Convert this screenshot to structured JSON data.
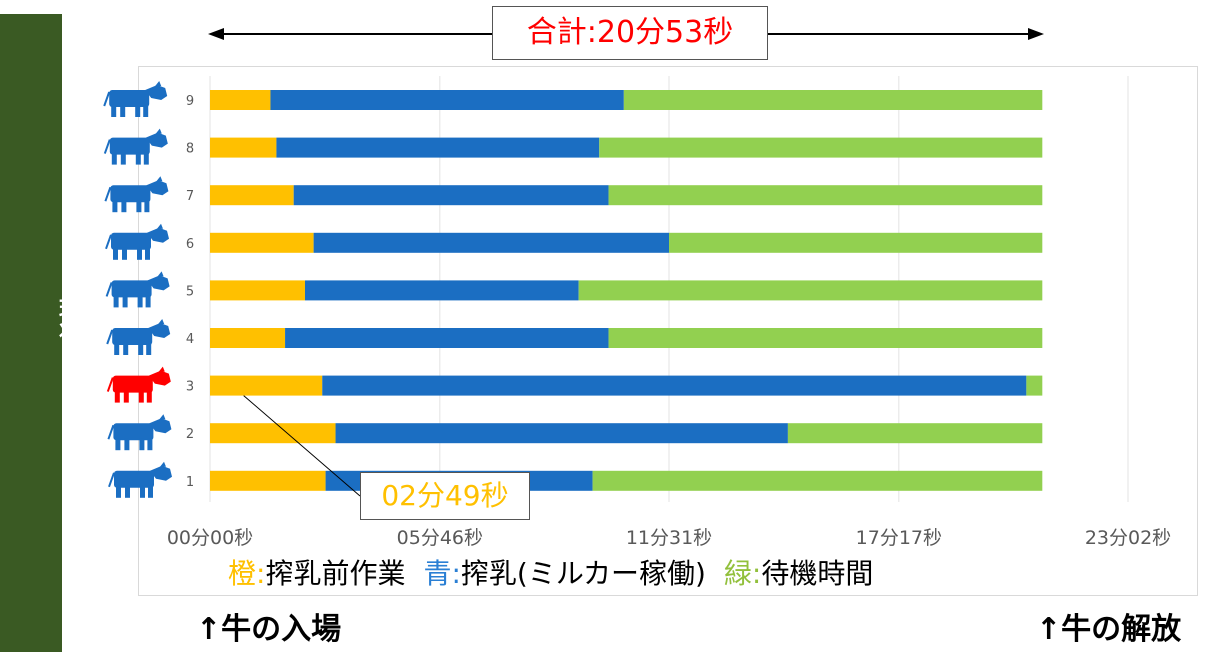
{
  "side_label": "現状",
  "colors": {
    "prep": "#ffc000",
    "milk": "#1b6ec2",
    "wait": "#92d050",
    "cow": "#1b6ec2",
    "cow_highlight": "#ff0000",
    "side_bar": "#3a5a23"
  },
  "total_label": "合計:20分53秒",
  "callout_label": "02分49秒",
  "legend": {
    "orange_key": "橙:",
    "orange_text": "搾乳前作業",
    "blue_key": "青:",
    "blue_text": "搾乳(ミルカー稼働)",
    "green_key": "緑:",
    "green_text": "待機時間"
  },
  "note_left": "↑牛の入場",
  "note_right": "↑牛の解放",
  "chart_data": {
    "type": "bar",
    "orientation": "horizontal",
    "stacked": true,
    "unit": "seconds",
    "xlim": [
      0,
      1382
    ],
    "x_ticks": [
      0,
      346,
      691,
      1037,
      1382
    ],
    "x_tick_labels": [
      "00分00秒",
      "05分46秒",
      "11分31秒",
      "17分17秒",
      "23分02秒"
    ],
    "categories": [
      "9",
      "8",
      "7",
      "6",
      "5",
      "4",
      "3",
      "2",
      "1"
    ],
    "highlight_category": "3",
    "series": [
      {
        "name": "搾乳前作業",
        "values": [
          91,
          100,
          126,
          156,
          143,
          113,
          169,
          189,
          174
        ]
      },
      {
        "name": "搾乳",
        "values": [
          532,
          486,
          474,
          535,
          412,
          487,
          1060,
          681,
          402
        ]
      },
      {
        "name": "待機時間",
        "values": [
          630,
          667,
          653,
          562,
          698,
          653,
          24,
          383,
          677
        ]
      }
    ],
    "total_seconds": 1253
  }
}
